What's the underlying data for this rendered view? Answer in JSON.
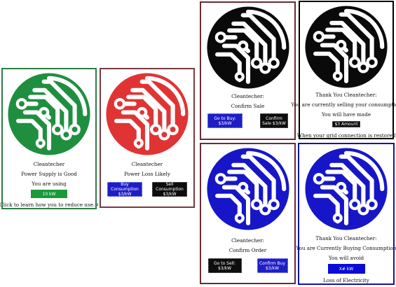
{
  "colors": {
    "green_logo": "#1f8f3f",
    "red_logo": "#e03434",
    "black_logo": "#0a0a0a",
    "blue_logo": "#1616c8"
  },
  "cards": [
    {
      "id": "supply-good",
      "logo_color": "#1f8f3f",
      "lines": [
        "Cleantecher",
        "Power Supply is Good",
        "You are using"
      ],
      "button": "10 kW",
      "footer": "Click to learn how you to reduce use. ♯"
    },
    {
      "id": "loss-likely",
      "logo_color": "#e03434",
      "lines": [
        "Cleantecher",
        "Power Loss Likely"
      ],
      "buttons": [
        "Buy Consumption $3/kW",
        "Sell Consumption $3/kW"
      ]
    },
    {
      "id": "confirm-sale",
      "logo_color": "#0a0a0a",
      "lines": [
        "Cleantecher:",
        "Confirm Sale"
      ],
      "buttons": [
        "Go to Buy: $3/kW",
        "Confirm Sale $3/kW"
      ]
    },
    {
      "id": "thank-selling",
      "logo_color": "#0a0a0a",
      "lines": [
        "Thank You Cleantecher:",
        "You are currently selling your consumption",
        "You will have made"
      ],
      "button": "$3 Amount",
      "footer": "When your grid connection is restored"
    },
    {
      "id": "confirm-order",
      "logo_color": "#1616c8",
      "lines": [
        "Cleantecher:",
        "Confirm Order"
      ],
      "buttons": [
        "Go to Sell: $3/kW",
        "Confirm Buy $3/kW"
      ]
    },
    {
      "id": "thank-buying",
      "logo_color": "#1616c8",
      "lines": [
        "Thank You Cleantecher:",
        "You are Currently Buying Consumption",
        "You will avoid"
      ],
      "button": "X# kW",
      "footer": "Loss of Electricity"
    }
  ]
}
